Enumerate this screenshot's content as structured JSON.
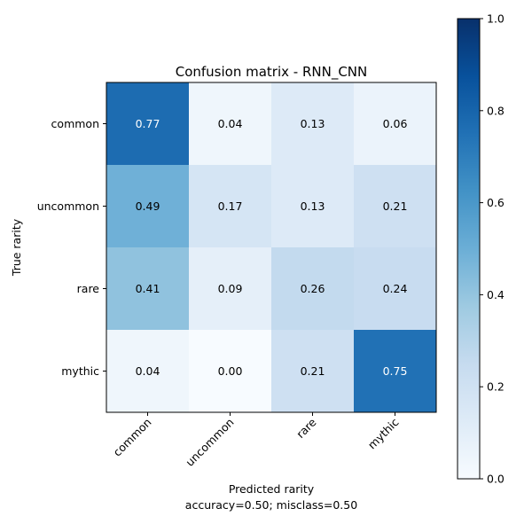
{
  "chart_data": {
    "type": "heatmap",
    "title": "Confusion matrix - RNN_CNN",
    "ylabel": "True rarity",
    "xlabel": "Predicted rarity",
    "xlabel_sub": "accuracy=0.50; misclass=0.50",
    "x_categories": [
      "common",
      "uncommon",
      "rare",
      "mythic"
    ],
    "y_categories": [
      "common",
      "uncommon",
      "rare",
      "mythic"
    ],
    "values": [
      [
        0.77,
        0.04,
        0.13,
        0.06
      ],
      [
        0.49,
        0.17,
        0.13,
        0.21
      ],
      [
        0.41,
        0.09,
        0.26,
        0.24
      ],
      [
        0.04,
        0.0,
        0.21,
        0.75
      ]
    ],
    "value_labels": [
      [
        "0.77",
        "0.04",
        "0.13",
        "0.06"
      ],
      [
        "0.49",
        "0.17",
        "0.13",
        "0.21"
      ],
      [
        "0.41",
        "0.09",
        "0.26",
        "0.24"
      ],
      [
        "0.04",
        "0.00",
        "0.21",
        "0.75"
      ]
    ],
    "colormap": "Blues",
    "colorbar": {
      "range": [
        0.0,
        1.0
      ],
      "ticks": [
        "0.0",
        "0.2",
        "0.4",
        "0.6",
        "0.8",
        "1.0"
      ]
    },
    "label_colors": {
      "light": "#ffffff",
      "dark": "#000000"
    },
    "label_threshold": 0.5
  }
}
